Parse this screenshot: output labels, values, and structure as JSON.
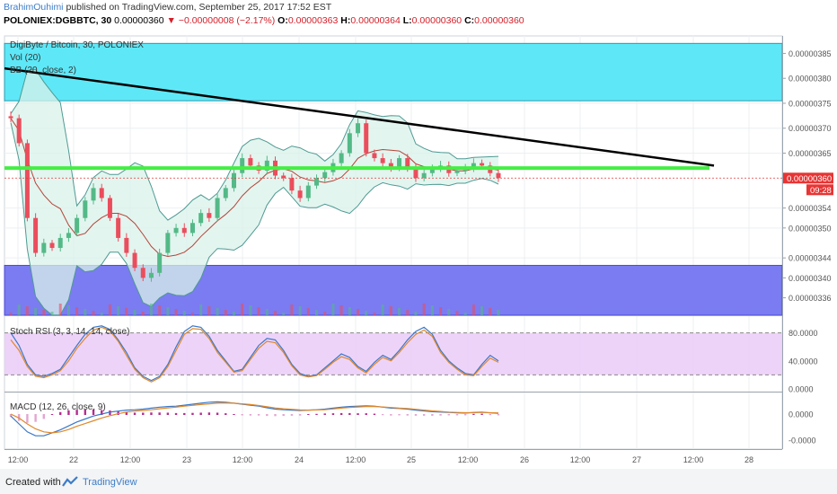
{
  "header": {
    "author": "BrahimOuhimi",
    "published": "published on TradingView.com, September 25, 2017 17:52 EST",
    "symbol": "POLONIEX:DGBBTC, 30",
    "last": "0.00000360",
    "change": "▼ −0.00000008 (−2.17%)",
    "o_label": "O:",
    "o_value": "0.00000363",
    "h_label": "H:",
    "h_value": "0.00000364",
    "l_label": "L:",
    "l_value": "0.00000360",
    "c_label": "C:",
    "c_value": "0.00000360"
  },
  "legend": {
    "title": "DigiByte / Bitcoin, 30, POLONIEX",
    "vol": "Vol (20)",
    "bb": "BB (20, close, 2)",
    "stoch": "Stoch RSI (3, 3, 14, 14, close)",
    "macd": "MACD (12, 26, close, 9)"
  },
  "price_badge": {
    "value": "0.00000360",
    "time": "09:28"
  },
  "footer": {
    "created": "Created with",
    "brand": "TradingView"
  },
  "colors": {
    "cyan_zone": "#5ee8f7",
    "blue_zone": "#7b7bf2",
    "rsi_band": "#eac8f7",
    "support_line": "#44ee44",
    "trend_line": "#000000",
    "bb_fill": "#d9f1ea",
    "bb_line": "#4f9a93",
    "bb_basis": "#b5443a",
    "candle_up": "#53b987",
    "candle_down": "#eb4d5c"
  },
  "chart_data": [
    {
      "type": "candlestick",
      "name": "DGB/BTC 30m",
      "yaxis_ticks": [
        "0.00000385",
        "0.00000380",
        "0.00000375",
        "0.00000370",
        "0.00000365",
        "0.00000354",
        "0.00000350",
        "0.00000344",
        "0.00000340",
        "0.00000336"
      ],
      "ylim": [
        3.325e-06,
        3.885e-06
      ],
      "xaxis_ticks": [
        "12:00",
        "22",
        "12:00",
        "23",
        "12:00",
        "24",
        "12:00",
        "25",
        "12:00",
        "26",
        "12:00",
        "27",
        "12:00",
        "28"
      ],
      "close_series": [
        3.72e-06,
        3.67e-06,
        3.52e-06,
        3.45e-06,
        3.47e-06,
        3.46e-06,
        3.48e-06,
        3.49e-06,
        3.52e-06,
        3.555e-06,
        3.58e-06,
        3.56e-06,
        3.52e-06,
        3.48e-06,
        3.45e-06,
        3.42e-06,
        3.4e-06,
        3.41e-06,
        3.45e-06,
        3.49e-06,
        3.5e-06,
        3.49e-06,
        3.51e-06,
        3.53e-06,
        3.52e-06,
        3.56e-06,
        3.58e-06,
        3.61e-06,
        3.64e-06,
        3.625e-06,
        3.615e-06,
        3.635e-06,
        3.605e-06,
        3.6e-06,
        3.575e-06,
        3.56e-06,
        3.585e-06,
        3.6e-06,
        3.612e-06,
        3.63e-06,
        3.65e-06,
        3.69e-06,
        3.71e-06,
        3.65e-06,
        3.64e-06,
        3.63e-06,
        3.62e-06,
        3.64e-06,
        3.62e-06,
        3.6e-06,
        3.61e-06,
        3.62e-06,
        3.625e-06,
        3.61e-06,
        3.615e-06,
        3.62e-06,
        3.63e-06,
        3.625e-06,
        3.61e-06,
        3.6e-06
      ],
      "annotations": {
        "resistance_zone": [
          3.755e-06,
          3.87e-06
        ],
        "support_zone": [
          3.325e-06,
          3.425e-06
        ],
        "support_line": 3.62e-06,
        "trendline": {
          "from": 3.82e-06,
          "to": 3.625e-06
        },
        "last_price": 3.6e-06
      }
    },
    {
      "type": "line",
      "name": "Stoch RSI",
      "yaxis_ticks": [
        "80.0000",
        "40.0000",
        "0.0000"
      ],
      "ylim": [
        0,
        100
      ],
      "bands": [
        20,
        80
      ],
      "series": [
        {
          "values": [
            80,
            62,
            35,
            20,
            18,
            22,
            28,
            45,
            62,
            78,
            88,
            90,
            85,
            70,
            52,
            30,
            18,
            12,
            18,
            35,
            60,
            82,
            90,
            88,
            75,
            55,
            40,
            25,
            28,
            45,
            62,
            72,
            70,
            55,
            35,
            22,
            18,
            20,
            30,
            40,
            50,
            45,
            32,
            25,
            38,
            48,
            42,
            55,
            70,
            82,
            88,
            78,
            55,
            40,
            30,
            22,
            20,
            35,
            48,
            40
          ]
        },
        {
          "values": [
            70,
            55,
            32,
            18,
            16,
            20,
            26,
            40,
            58,
            72,
            84,
            88,
            83,
            68,
            48,
            28,
            16,
            10,
            16,
            32,
            55,
            78,
            86,
            85,
            72,
            52,
            38,
            24,
            26,
            42,
            58,
            68,
            66,
            52,
            33,
            20,
            17,
            19,
            28,
            38,
            46,
            42,
            30,
            23,
            35,
            45,
            40,
            52,
            66,
            78,
            84,
            75,
            52,
            38,
            28,
            20,
            19,
            32,
            44,
            38
          ]
        }
      ]
    },
    {
      "type": "line",
      "name": "MACD",
      "yaxis_ticks": [
        "0.0000",
        "-0.0000"
      ],
      "series": [
        {
          "values": [
            -0.1,
            -0.5,
            -0.9,
            -1.1,
            -1.1,
            -0.95,
            -0.8,
            -0.6,
            -0.4,
            -0.25,
            -0.1,
            0.0,
            0.1,
            0.15,
            0.2,
            0.22,
            0.25,
            0.3,
            0.35,
            0.38,
            0.4,
            0.45,
            0.5,
            0.55,
            0.6,
            0.62,
            0.6,
            0.55,
            0.5,
            0.45,
            0.4,
            0.32,
            0.25,
            0.22,
            0.2,
            0.18,
            0.2,
            0.22,
            0.25,
            0.3,
            0.35,
            0.38,
            0.4,
            0.42,
            0.4,
            0.35,
            0.3,
            0.28,
            0.25,
            0.2,
            0.16,
            0.12,
            0.1,
            0.08,
            0.06,
            0.05,
            0.08,
            0.1,
            0.06,
            0.04
          ]
        },
        {
          "values": [
            0.0,
            -0.2,
            -0.5,
            -0.75,
            -0.9,
            -0.95,
            -0.9,
            -0.78,
            -0.62,
            -0.48,
            -0.34,
            -0.2,
            -0.08,
            0.02,
            0.1,
            0.15,
            0.18,
            0.22,
            0.27,
            0.31,
            0.35,
            0.4,
            0.44,
            0.48,
            0.52,
            0.55,
            0.56,
            0.55,
            0.52,
            0.48,
            0.43,
            0.37,
            0.31,
            0.27,
            0.24,
            0.21,
            0.2,
            0.21,
            0.22,
            0.26,
            0.3,
            0.33,
            0.36,
            0.38,
            0.38,
            0.36,
            0.33,
            0.3,
            0.28,
            0.24,
            0.2,
            0.16,
            0.13,
            0.1,
            0.08,
            0.07,
            0.07,
            0.08,
            0.07,
            0.06
          ]
        }
      ]
    }
  ]
}
